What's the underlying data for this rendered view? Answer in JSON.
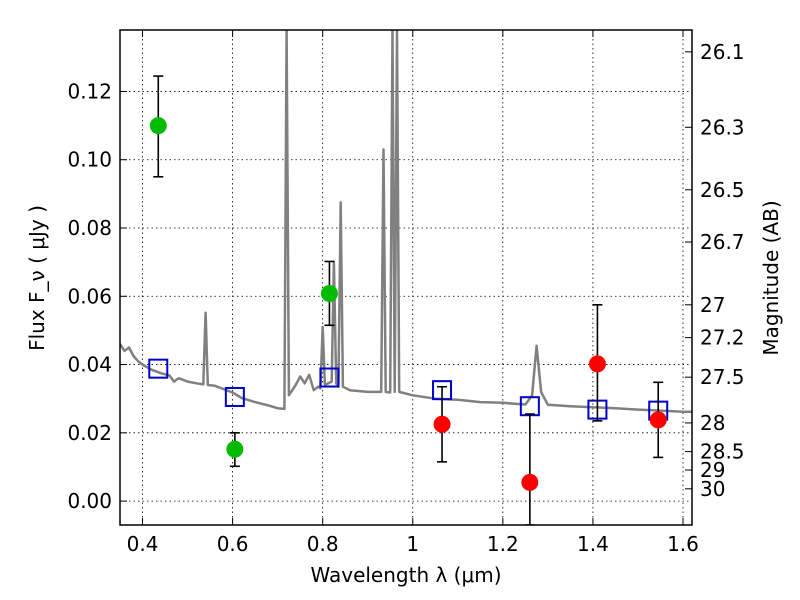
{
  "chart_data": {
    "type": "scatter",
    "xlabel": "Wavelength  λ (μm)",
    "ylabel": "Flux  F_ν  ( μJy )",
    "ylabel_right": "Magnitude (AB)",
    "xlim": [
      0.35,
      1.62
    ],
    "ylim": [
      -0.007,
      0.138
    ],
    "grid": true,
    "x_ticks": [
      0.4,
      0.6,
      0.8,
      1.0,
      1.2,
      1.4,
      1.6
    ],
    "x_tick_labels": [
      "0.4",
      "0.6",
      "0.8",
      "1",
      "1.2",
      "1.4",
      "1.6"
    ],
    "y_ticks": [
      0.0,
      0.02,
      0.04,
      0.06,
      0.08,
      0.1,
      0.12
    ],
    "y_tick_labels": [
      "0.00",
      "0.02",
      "0.04",
      "0.06",
      "0.08",
      "0.10",
      "0.12"
    ],
    "right_ticks": [
      {
        "label": "26.1",
        "flux": 0.1316
      },
      {
        "label": "26.3",
        "flux": 0.1095
      },
      {
        "label": "26.5",
        "flux": 0.0912
      },
      {
        "label": "26.7",
        "flux": 0.0759
      },
      {
        "label": "27",
        "flux": 0.0575
      },
      {
        "label": "27.2",
        "flux": 0.0479
      },
      {
        "label": "27.5",
        "flux": 0.0363
      },
      {
        "label": "28",
        "flux": 0.0229
      },
      {
        "label": "28.5",
        "flux": 0.0145
      },
      {
        "label": "29",
        "flux": 0.0091
      },
      {
        "label": "30",
        "flux": 0.0036
      }
    ],
    "series": [
      {
        "marker": "circle",
        "color": "#00bb00",
        "points": [
          {
            "x": 0.435,
            "y": 0.11,
            "ylo": 0.095,
            "yhi": 0.1245
          },
          {
            "x": 0.605,
            "y": 0.0152,
            "ylo": 0.0102,
            "yhi": 0.02
          },
          {
            "x": 0.815,
            "y": 0.0608,
            "ylo": 0.0515,
            "yhi": 0.0702
          }
        ]
      },
      {
        "marker": "circle",
        "color": "#ff0000",
        "points": [
          {
            "x": 1.065,
            "y": 0.0225,
            "ylo": 0.0115,
            "yhi": 0.0335
          },
          {
            "x": 1.26,
            "y": 0.0055,
            "ylo": -0.007,
            "yhi": 0.0255
          },
          {
            "x": 1.41,
            "y": 0.0402,
            "ylo": 0.0235,
            "yhi": 0.0575
          },
          {
            "x": 1.545,
            "y": 0.0238,
            "ylo": 0.0128,
            "yhi": 0.0348
          }
        ]
      },
      {
        "marker": "square",
        "color": "#0000cc",
        "points": [
          {
            "x": 0.435,
            "y": 0.0388
          },
          {
            "x": 0.605,
            "y": 0.0305
          },
          {
            "x": 0.815,
            "y": 0.0362
          },
          {
            "x": 1.065,
            "y": 0.0325
          },
          {
            "x": 1.26,
            "y": 0.0278
          },
          {
            "x": 1.41,
            "y": 0.0268
          },
          {
            "x": 1.545,
            "y": 0.0265
          }
        ]
      }
    ],
    "sed_model": {
      "color": "#808080",
      "points": [
        [
          0.35,
          0.046
        ],
        [
          0.36,
          0.044
        ],
        [
          0.37,
          0.045
        ],
        [
          0.38,
          0.0425
        ],
        [
          0.39,
          0.041
        ],
        [
          0.4,
          0.04
        ],
        [
          0.42,
          0.0385
        ],
        [
          0.44,
          0.0375
        ],
        [
          0.46,
          0.0368
        ],
        [
          0.47,
          0.035
        ],
        [
          0.48,
          0.036
        ],
        [
          0.5,
          0.035
        ],
        [
          0.52,
          0.0345
        ],
        [
          0.535,
          0.0342
        ],
        [
          0.54,
          0.0552
        ],
        [
          0.545,
          0.034
        ],
        [
          0.56,
          0.0338
        ],
        [
          0.6,
          0.0318
        ],
        [
          0.62,
          0.0302
        ],
        [
          0.65,
          0.029
        ],
        [
          0.68,
          0.028
        ],
        [
          0.7,
          0.0272
        ],
        [
          0.715,
          0.027
        ],
        [
          0.72,
          0.138
        ],
        [
          0.725,
          0.031
        ],
        [
          0.74,
          0.034
        ],
        [
          0.75,
          0.0365
        ],
        [
          0.76,
          0.0345
        ],
        [
          0.77,
          0.037
        ],
        [
          0.78,
          0.0325
        ],
        [
          0.79,
          0.0335
        ],
        [
          0.795,
          0.033
        ],
        [
          0.8,
          0.051
        ],
        [
          0.805,
          0.034
        ],
        [
          0.82,
          0.035
        ],
        [
          0.825,
          0.07
        ],
        [
          0.83,
          0.0345
        ],
        [
          0.835,
          0.0335
        ],
        [
          0.84,
          0.0875
        ],
        [
          0.845,
          0.0335
        ],
        [
          0.86,
          0.0325
        ],
        [
          0.9,
          0.032
        ],
        [
          0.93,
          0.032
        ],
        [
          0.935,
          0.103
        ],
        [
          0.94,
          0.032
        ],
        [
          0.95,
          0.0318
        ],
        [
          0.955,
          0.138
        ],
        [
          0.96,
          0.032
        ],
        [
          0.965,
          0.138
        ],
        [
          0.97,
          0.032
        ],
        [
          1.0,
          0.031
        ],
        [
          1.05,
          0.03
        ],
        [
          1.1,
          0.0297
        ],
        [
          1.15,
          0.029
        ],
        [
          1.2,
          0.0288
        ],
        [
          1.25,
          0.0283
        ],
        [
          1.265,
          0.031
        ],
        [
          1.275,
          0.0455
        ],
        [
          1.285,
          0.032
        ],
        [
          1.3,
          0.0282
        ],
        [
          1.35,
          0.0278
        ],
        [
          1.4,
          0.0275
        ],
        [
          1.45,
          0.0272
        ],
        [
          1.5,
          0.0268
        ],
        [
          1.55,
          0.0265
        ],
        [
          1.6,
          0.0262
        ],
        [
          1.62,
          0.0262
        ]
      ]
    }
  }
}
